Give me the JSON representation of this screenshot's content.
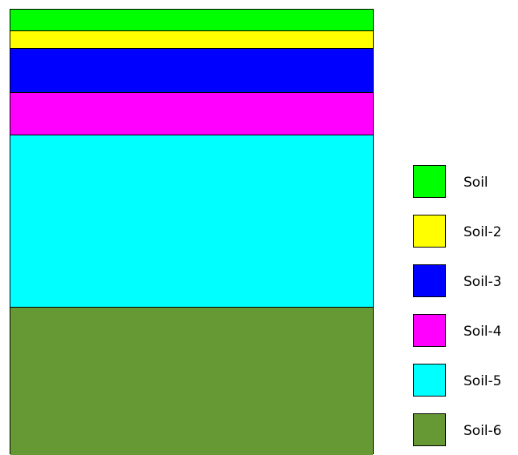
{
  "layers": [
    {
      "name": "Soil",
      "color": "#00ff00",
      "relative_thickness": 27
    },
    {
      "name": "Soil-2",
      "color": "#ffff00",
      "relative_thickness": 22
    },
    {
      "name": "Soil-3",
      "color": "#0000ff",
      "relative_thickness": 55
    },
    {
      "name": "Soil-4",
      "color": "#ff00ff",
      "relative_thickness": 53
    },
    {
      "name": "Soil-5",
      "color": "#00ffff",
      "relative_thickness": 215
    },
    {
      "name": "Soil-6",
      "color": "#669933",
      "relative_thickness": 184
    }
  ],
  "legend": {
    "items": [
      {
        "label": "Soil",
        "color": "#00ff00"
      },
      {
        "label": "Soil-2",
        "color": "#ffff00"
      },
      {
        "label": "Soil-3",
        "color": "#0000ff"
      },
      {
        "label": "Soil-4",
        "color": "#ff00ff"
      },
      {
        "label": "Soil-5",
        "color": "#00ffff"
      },
      {
        "label": "Soil-6",
        "color": "#669933"
      }
    ]
  }
}
